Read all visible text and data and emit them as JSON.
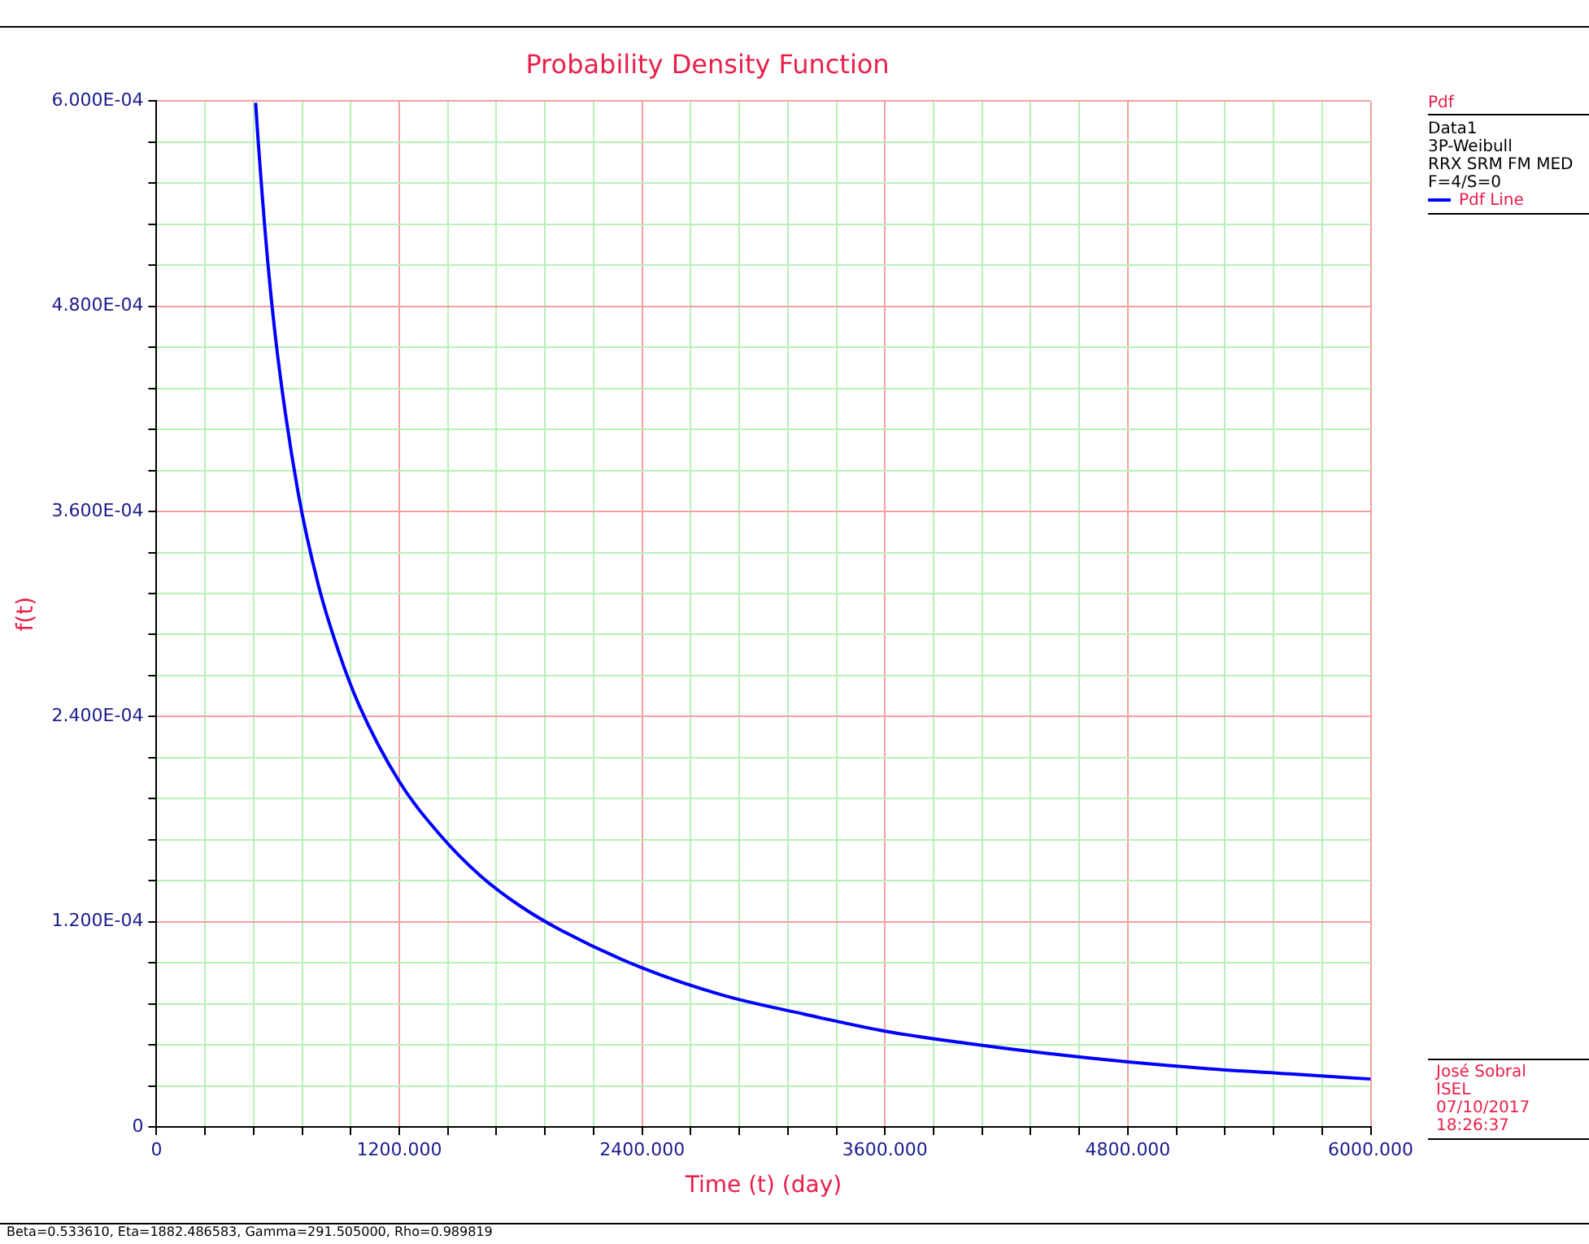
{
  "chart_data": {
    "type": "line",
    "title": "Probability Density Function",
    "xlabel": "Time (t) (day)",
    "ylabel": "f(t)",
    "legend_title": "Pdf",
    "legend": "top right",
    "grid": true,
    "marker": "none",
    "line_style": "solid",
    "xlim": [
      0,
      6000
    ],
    "ylim": [
      0,
      0.0006
    ],
    "xticks": [
      0,
      {
        "value": 240,
        "label": null
      },
      {
        "value": 480,
        "label": null
      },
      {
        "value": 720,
        "label": null
      },
      {
        "value": 960,
        "label": null
      },
      {
        "value": 1200,
        "label": "1200.000"
      },
      {
        "value": 1440,
        "label": null
      },
      {
        "value": 1680,
        "label": null
      },
      {
        "value": 1920,
        "label": null
      },
      {
        "value": 2160,
        "label": null
      },
      {
        "value": 2400,
        "label": "2400.000"
      },
      {
        "value": 2640,
        "label": null
      },
      {
        "value": 2880,
        "label": null
      },
      {
        "value": 3120,
        "label": null
      },
      {
        "value": 3360,
        "label": null
      },
      {
        "value": 3600,
        "label": "3600.000"
      },
      {
        "value": 3840,
        "label": null
      },
      {
        "value": 4080,
        "label": null
      },
      {
        "value": 4320,
        "label": null
      },
      {
        "value": 4560,
        "label": null
      },
      {
        "value": 4800,
        "label": "4800.000"
      },
      {
        "value": 5040,
        "label": null
      },
      {
        "value": 5280,
        "label": null
      },
      {
        "value": 5520,
        "label": null
      },
      {
        "value": 5760,
        "label": null
      },
      {
        "value": 6000,
        "label": "6000.000"
      }
    ],
    "yticks": [
      0,
      {
        "value": 2.4e-05,
        "label": null
      },
      {
        "value": 4.8e-05,
        "label": null
      },
      {
        "value": 7.2e-05,
        "label": null
      },
      {
        "value": 9.6e-05,
        "label": null
      },
      {
        "value": 0.00012,
        "label": "1.200E-04"
      },
      {
        "value": 0.000144,
        "label": null
      },
      {
        "value": 0.000168,
        "label": null
      },
      {
        "value": 0.000192,
        "label": null
      },
      {
        "value": 0.000216,
        "label": null
      },
      {
        "value": 0.00024,
        "label": "2.400E-04"
      },
      {
        "value": 0.000264,
        "label": null
      },
      {
        "value": 0.000288,
        "label": null
      },
      {
        "value": 0.000312,
        "label": null
      },
      {
        "value": 0.000336,
        "label": null
      },
      {
        "value": 0.00036,
        "label": "3.600E-04"
      },
      {
        "value": 0.000384,
        "label": null
      },
      {
        "value": 0.000408,
        "label": null
      },
      {
        "value": 0.000432,
        "label": null
      },
      {
        "value": 0.000456,
        "label": null
      },
      {
        "value": 0.00048,
        "label": "4.800E-04"
      },
      {
        "value": 0.000504,
        "label": null
      },
      {
        "value": 0.000528,
        "label": null
      },
      {
        "value": 0.000552,
        "label": null
      },
      {
        "value": 0.000576,
        "label": null
      },
      {
        "value": 0.0006,
        "label": "6.000E-04"
      }
    ],
    "x": [
      490,
      500,
      550,
      600,
      700,
      800,
      900,
      1000,
      1200,
      1400,
      1600,
      1800,
      2000,
      2400,
      2800,
      3200,
      3600,
      4000,
      4400,
      4800,
      5200,
      5600,
      6000
    ],
    "series": [
      {
        "name": "Pdf Line",
        "color": "#0000ff",
        "values": [
          0.000599,
          0.000581,
          0.000506,
          0.00045,
          0.000371,
          0.000317,
          0.000278,
          0.000247,
          0.000202,
          0.000171,
          0.000147,
          0.000129,
          0.000115,
          9.3e-05,
          7.7e-05,
          6.6e-05,
          5.6e-05,
          4.9e-05,
          4.3e-05,
          3.8e-05,
          3.4e-05,
          3.1e-05,
          2.8e-05
        ]
      }
    ],
    "annotations": [
      "Data1",
      "3P-Weibull",
      "RRX SRM FM MED",
      "F=4/S=0",
      "José Sobral",
      "ISEL",
      "07/10/2017",
      "18:26:37",
      "Beta=0.533610, Eta=1882.486583, Gamma=291.505000, Rho=0.989819"
    ]
  }
}
